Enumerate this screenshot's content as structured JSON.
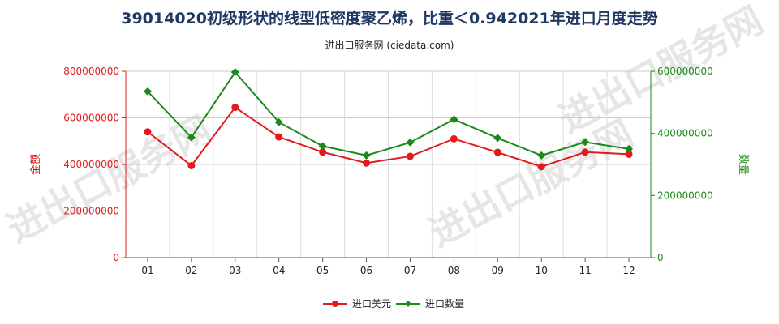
{
  "title": "39014020初级形状的线型低密度聚乙烯，比重＜0.942021年进口月度走势",
  "subtitle": "进出口服务网 (ciedata.com)",
  "watermark": "进出口服务网",
  "chart_data": {
    "type": "line",
    "categories": [
      "01",
      "02",
      "03",
      "04",
      "05",
      "06",
      "07",
      "08",
      "09",
      "10",
      "11",
      "12"
    ],
    "y_left": {
      "label": "金额",
      "ticks": [
        "0",
        "200000000",
        "400000000",
        "600000000",
        "800000000"
      ],
      "lim": [
        0,
        800000000
      ]
    },
    "y_right": {
      "label": "数量",
      "ticks": [
        "0",
        "200000000",
        "400000000",
        "600000000"
      ],
      "lim": [
        0,
        600000000
      ]
    },
    "grid": true,
    "legend_position": "bottom",
    "series": [
      {
        "name": "进口美元",
        "axis": "left",
        "color": "#e31a1c",
        "values": [
          540000000,
          395000000,
          645000000,
          518000000,
          453000000,
          406000000,
          435000000,
          510000000,
          452000000,
          390000000,
          453000000,
          444000000
        ]
      },
      {
        "name": "进口数量",
        "axis": "right",
        "color": "#1a8a1a",
        "values": [
          535000000,
          387000000,
          597000000,
          436000000,
          359000000,
          329000000,
          371000000,
          445000000,
          385000000,
          329000000,
          372000000,
          350000000
        ]
      }
    ]
  }
}
